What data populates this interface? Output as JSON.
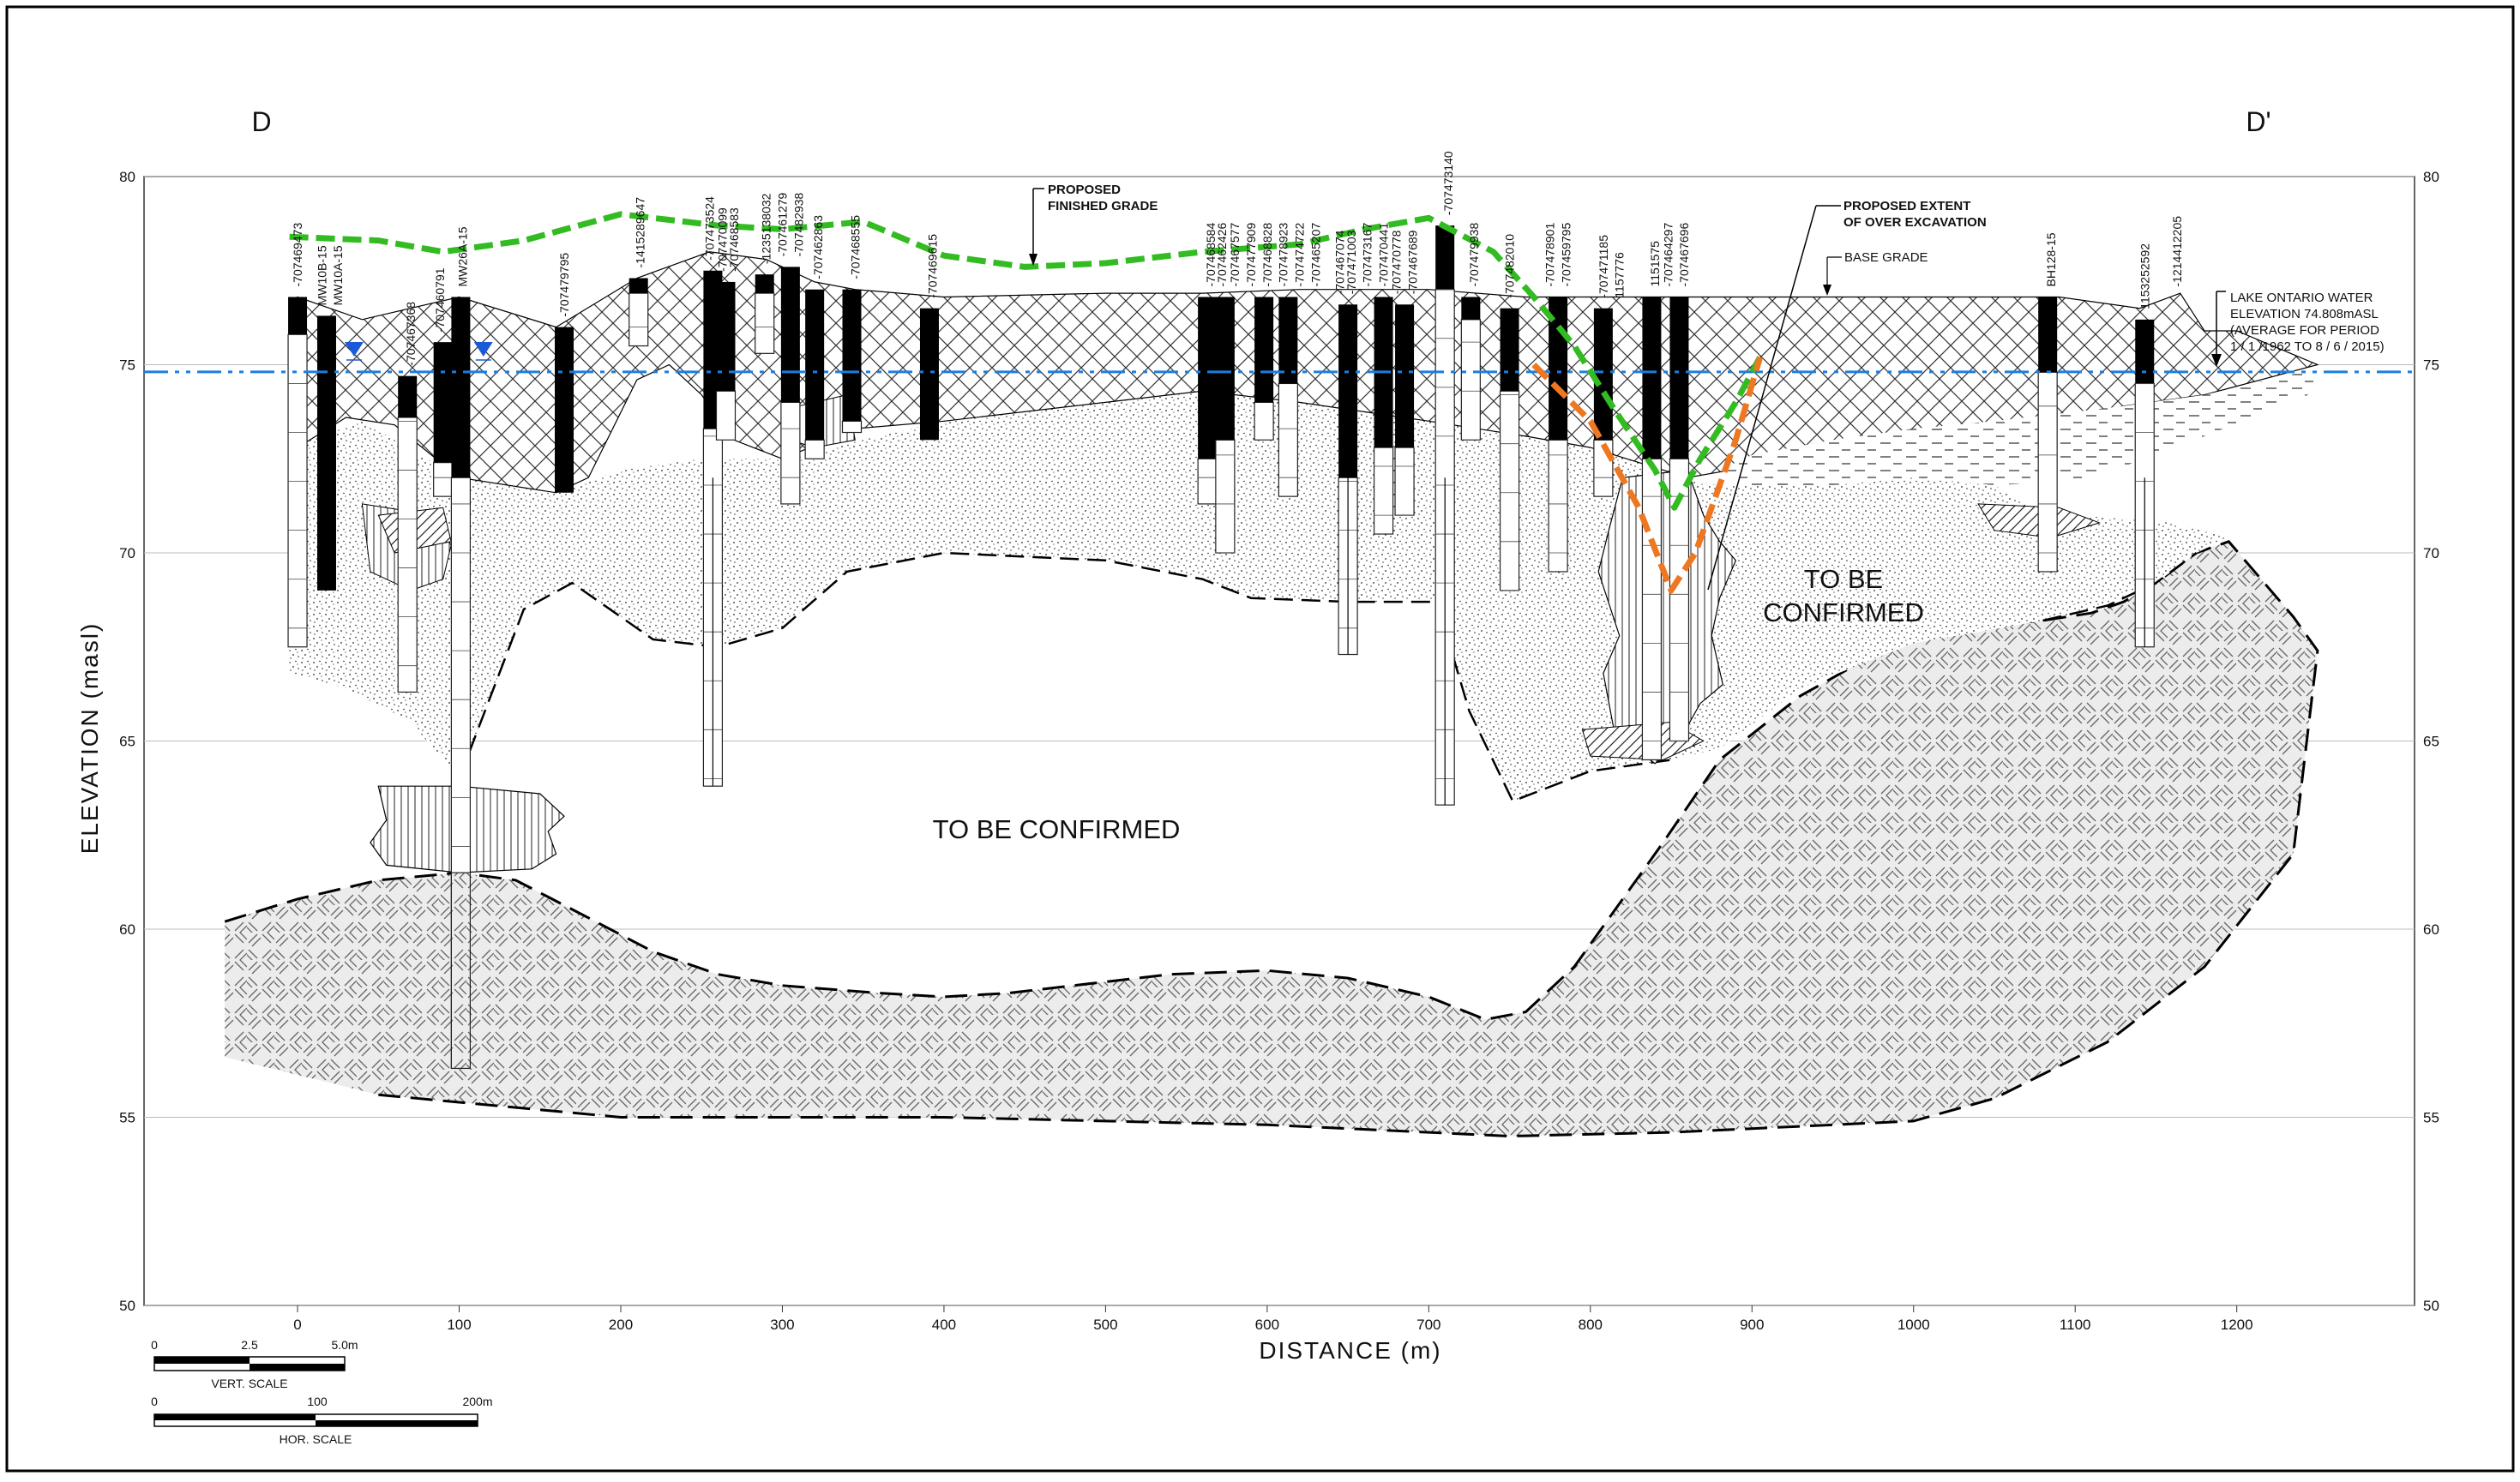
{
  "section": {
    "start_label": "D",
    "end_label": "D'"
  },
  "axes": {
    "ylabel": "ELEVATION (masl)",
    "xlabel": "DISTANCE (m)",
    "y_ticks": [
      "80",
      "75",
      "70",
      "65",
      "60",
      "55",
      "50"
    ],
    "x_ticks": [
      "0",
      "100",
      "200",
      "300",
      "400",
      "500",
      "600",
      "700",
      "800",
      "900",
      "1000",
      "1100",
      "1200"
    ],
    "ylim": [
      50,
      80
    ],
    "xlim": [
      -95,
      1310
    ]
  },
  "boreholes": [
    {
      "id": "-707469473",
      "x": 0
    },
    {
      "id": "MW10B-15",
      "x": 15
    },
    {
      "id": "MW10A-15",
      "x": 25
    },
    {
      "id": "-707467368",
      "x": 70
    },
    {
      "id": "-707460791",
      "x": 88
    },
    {
      "id": "MW26A-15",
      "x": 102
    },
    {
      "id": "-707479795",
      "x": 165
    },
    {
      "id": "-1415289647",
      "x": 212
    },
    {
      "id": "-707473524",
      "x": 255
    },
    {
      "id": "-707470099",
      "x": 263
    },
    {
      "id": "-707468583",
      "x": 270
    },
    {
      "id": "-1235138032",
      "x": 290
    },
    {
      "id": "-707461279",
      "x": 300
    },
    {
      "id": "-707482938",
      "x": 310
    },
    {
      "id": "-707462863",
      "x": 322
    },
    {
      "id": "-707468555",
      "x": 345
    },
    {
      "id": "-707469615",
      "x": 393
    },
    {
      "id": "-707468584",
      "x": 565
    },
    {
      "id": "-707462426",
      "x": 572
    },
    {
      "id": "-707467577",
      "x": 580
    },
    {
      "id": "-707477909",
      "x": 590
    },
    {
      "id": "-707468828",
      "x": 600
    },
    {
      "id": "-707478923",
      "x": 610
    },
    {
      "id": "-707474722",
      "x": 620
    },
    {
      "id": "-707465207",
      "x": 630
    },
    {
      "id": "-707467074",
      "x": 645
    },
    {
      "id": "-707471003",
      "x": 652
    },
    {
      "id": "-707473167",
      "x": 662
    },
    {
      "id": "-707470441",
      "x": 672
    },
    {
      "id": "-707470778",
      "x": 680
    },
    {
      "id": "-707467689",
      "x": 690
    },
    {
      "id": "-707473140",
      "x": 712
    },
    {
      "id": "-707479938",
      "x": 728
    },
    {
      "id": "-707482010",
      "x": 750
    },
    {
      "id": "-707478901",
      "x": 775
    },
    {
      "id": "-707459795",
      "x": 785
    },
    {
      "id": "-707471185",
      "x": 808
    },
    {
      "id": "1157776",
      "x": 818
    },
    {
      "id": "1151575",
      "x": 840
    },
    {
      "id": "-707464297",
      "x": 848
    },
    {
      "id": "-707467696",
      "x": 858
    },
    {
      "id": "BH128-15",
      "x": 1085
    },
    {
      "id": "1153252592",
      "x": 1143
    },
    {
      "id": "-1214412205",
      "x": 1163
    }
  ],
  "annotations": {
    "finished_grade": [
      "PROPOSED",
      "FINISHED GRADE"
    ],
    "over_excavation": [
      "PROPOSED EXTENT",
      "OF OVER EXCAVATION"
    ],
    "base_grade": "BASE GRADE",
    "lake_water": [
      "LAKE ONTARIO WATER",
      "ELEVATION 74.808mASL",
      "(AVERAGE FOR PERIOD",
      "1 / 1 /1962 TO 8 / 6 / 2015)"
    ],
    "tbc_main": "TO BE CONFIRMED",
    "tbc_right": [
      "TO BE",
      "CONFIRMED"
    ]
  },
  "scales": {
    "vert": {
      "labels": [
        "0",
        "2.5",
        "5.0m"
      ],
      "title": "VERT. SCALE"
    },
    "hor": {
      "labels": [
        "0",
        "100",
        "200m"
      ],
      "title": "HOR. SCALE"
    }
  },
  "water_level_elevation": 74.808,
  "colors": {
    "finished_grade": "#33bb22",
    "over_excavation": "#ee7722",
    "water_line": "#1a7ee0",
    "water_symbol": "#1a5ad8"
  }
}
